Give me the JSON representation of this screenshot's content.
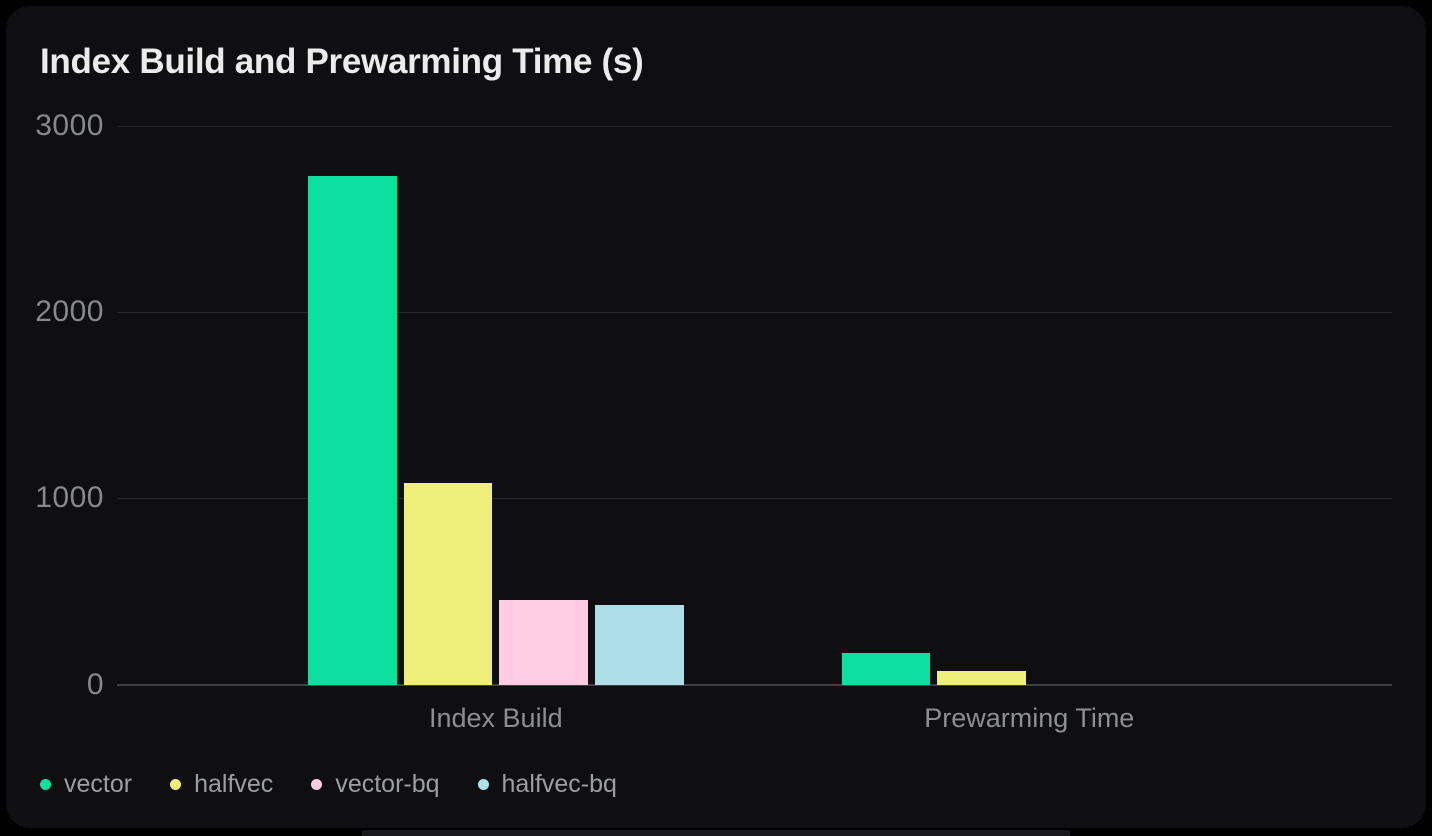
{
  "page": {
    "background": "#000000",
    "card_background": "#0f0f11"
  },
  "chart_data": {
    "type": "bar",
    "title": "Index Build and Prewarming Time (s)",
    "units": "s",
    "categories": [
      "Index Build",
      "Prewarming Time"
    ],
    "series": [
      {
        "name": "vector",
        "color": "#0ce0a0",
        "values": [
          2730,
          170
        ]
      },
      {
        "name": "halfvec",
        "color": "#edef78",
        "values": [
          1080,
          75
        ]
      },
      {
        "name": "vector-bq",
        "color": "#ffcce3",
        "values": [
          455,
          0
        ]
      },
      {
        "name": "halfvec-bq",
        "color": "#aedfe9",
        "values": [
          425,
          0
        ]
      }
    ],
    "xlabel": "",
    "ylabel": "",
    "ylim": [
      0,
      3000
    ],
    "yticks": [
      0,
      1000,
      2000,
      3000
    ],
    "grid": true,
    "legend_position": "bottom-left",
    "colors": {
      "title_text": "#ebebec",
      "tick_text": "#85888d",
      "category_text": "#8b8e93",
      "legend_text": "#9b9ea3",
      "grid_line": "#28282c",
      "zero_line": "#3e4045"
    }
  }
}
